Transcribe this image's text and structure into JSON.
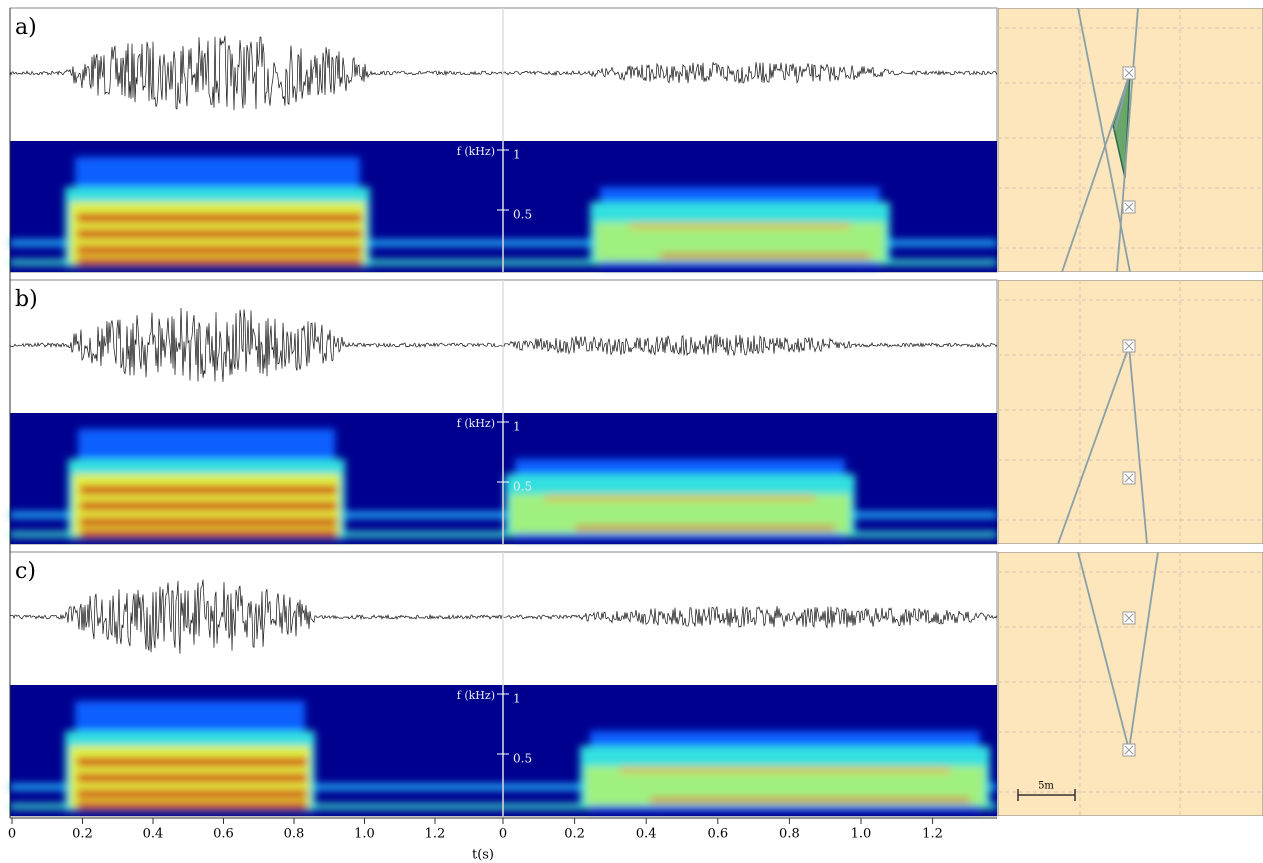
{
  "panels": [
    {
      "label": "a)"
    },
    {
      "label": "b)"
    },
    {
      "label": "c)"
    }
  ],
  "spectrogram_axis": {
    "label": "f (kHz)",
    "ticks": [
      1,
      0.5
    ]
  },
  "time_axis": {
    "label": "t(s)",
    "left_ticks": [
      0,
      0.2,
      0.4,
      0.6,
      0.8,
      {
        "value": 1,
        "label": "1.0"
      },
      1.2
    ],
    "right_ticks": [
      0,
      0.2,
      0.4,
      0.6,
      0.8,
      {
        "value": 1,
        "label": "1.0"
      },
      1.2
    ]
  },
  "map": {
    "scale_label": "5m"
  }
}
